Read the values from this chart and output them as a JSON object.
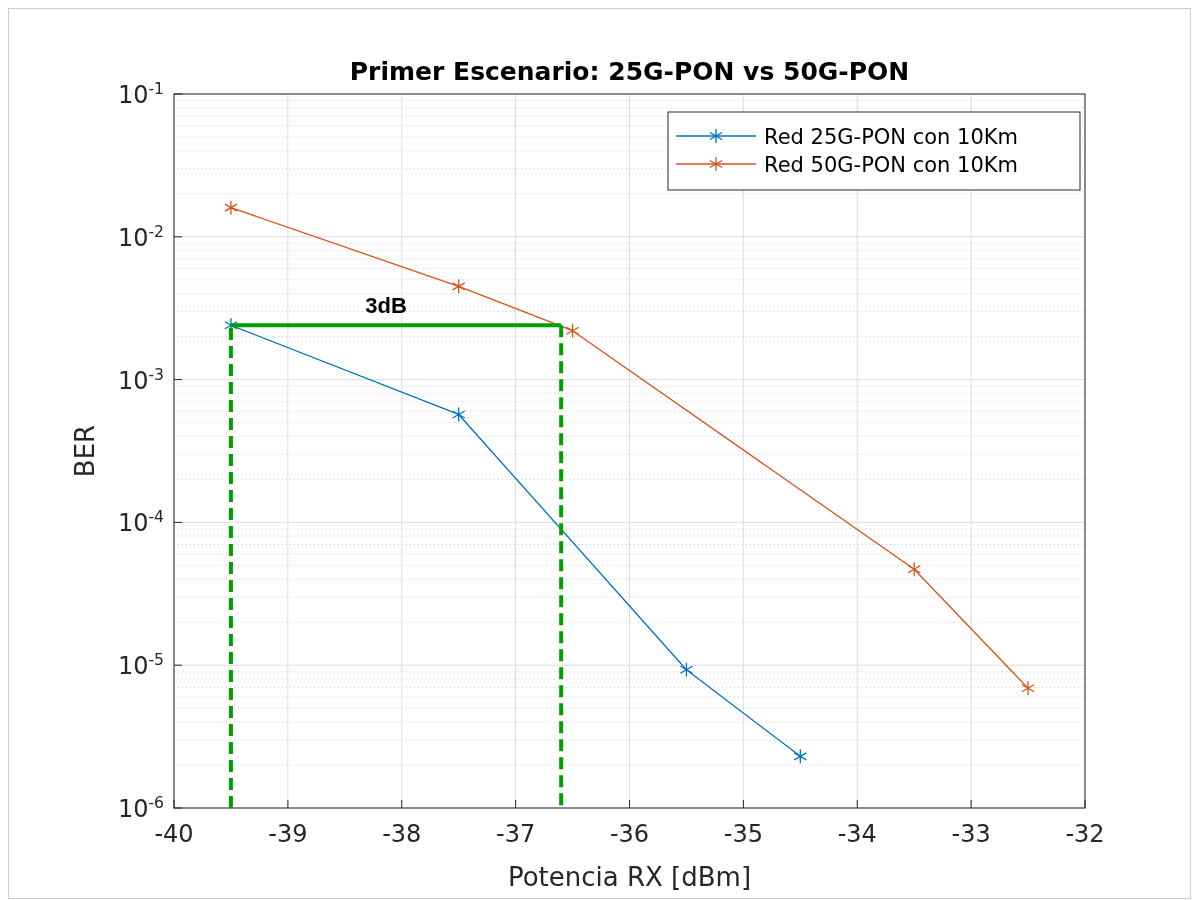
{
  "chart_data": {
    "type": "line",
    "title": "Primer Escenario: 25G-PON vs 50G-PON",
    "xlabel": "Potencia RX [dBm]",
    "ylabel": "BER",
    "log": "y",
    "grid": true,
    "legend": "top right",
    "marker": "cross",
    "line_style": "solid",
    "xlim": [
      -40,
      -32
    ],
    "xticks": [
      -40,
      -39,
      -38,
      -37,
      -36,
      -35,
      -34,
      -33,
      -32
    ],
    "ylim": [
      1e-06,
      0.1
    ],
    "yticks": [
      {
        "value": 1e-06,
        "label": "10$^{-6}$"
      },
      {
        "value": 1e-05,
        "label": "10$^{-5}$"
      },
      {
        "value": 0.0001,
        "label": "10$^{-4}$"
      },
      {
        "value": 0.001,
        "label": "10$^{-3}$"
      },
      {
        "value": 0.01,
        "label": "10$^{-2}$"
      },
      {
        "value": 0.1,
        "label": "10$^{-1}$"
      }
    ],
    "series": [
      {
        "name": "Red 25G-PON con 10Km",
        "color": "#0072bd",
        "x": [
          -39.5,
          -37.5,
          -35.5,
          -34.5
        ],
        "values": [
          0.0024,
          0.00057,
          9.3e-06,
          2.3e-06
        ]
      },
      {
        "name": "Red 50G-PON con 10Km",
        "color": "#d95319",
        "x": [
          -39.5,
          -37.5,
          -36.5,
          -33.5,
          -32.5
        ],
        "values": [
          0.016,
          0.0045,
          0.0022,
          4.7e-05,
          6.9e-06
        ]
      },
      {
        "color": "#00a000",
        "x": [
          -39.5,
          -36.6
        ],
        "values": [
          0.0024,
          0.0024
        ],
        "marker": "none",
        "line_style": "solid"
      },
      {
        "color": "#00a000",
        "x": [
          -39.5,
          -39.5,
          -38,
          -36.6,
          -36.6
        ],
        "values": [
          1e-06,
          0.0024,
          null,
          0.0024,
          1e-06
        ],
        "marker": "none",
        "line_style": "dashed"
      }
    ],
    "annotations": [
      "3dB"
    ]
  }
}
